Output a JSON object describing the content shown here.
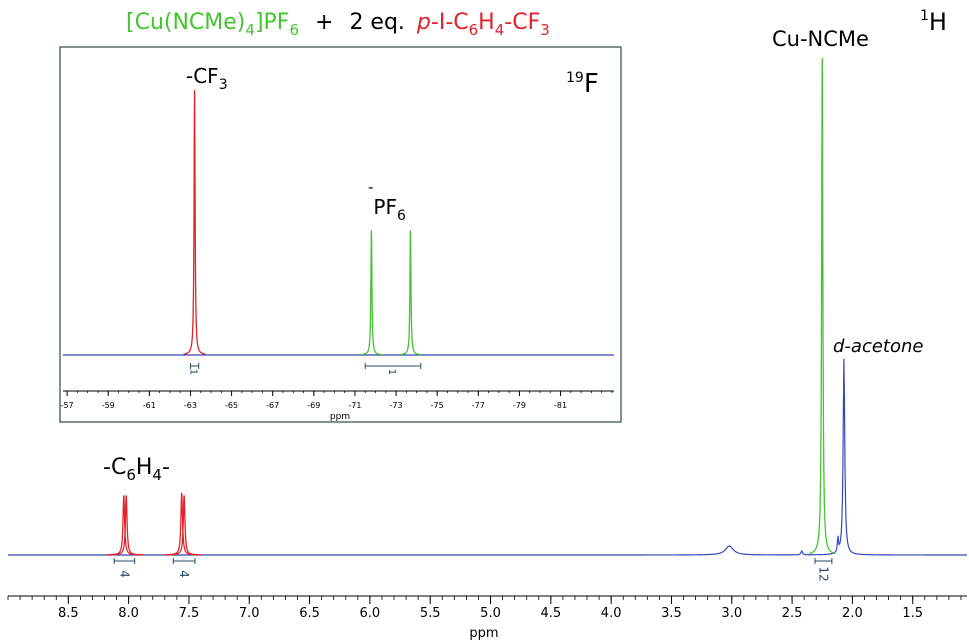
{
  "figure": {
    "reaction": {
      "reagent1": "[Cu(NCMe)",
      "reagent1_sub": "4",
      "reagent1_end": "]PF",
      "reagent1_sub2": "6",
      "plus": "+",
      "equiv": "2 eq.",
      "reagent2_italic": "p",
      "reagent2": "-I-C",
      "reagent2_sub1": "6",
      "reagent2_mid": "H",
      "reagent2_sub2": "4",
      "reagent2_end": "-CF",
      "reagent2_sub3": "3"
    },
    "colors": {
      "green": "#44c530",
      "red": "#e0222a",
      "blue": "#3548b8",
      "integral": "#2a4a6a"
    }
  },
  "chart_data": [
    {
      "id": "1H",
      "type": "line",
      "nucleus_label": {
        "super": "1",
        "base": "H"
      },
      "xlabel": "ppm",
      "xlim": [
        9.0,
        1.05
      ],
      "x_reversed": true,
      "ticks": [
        "8.5",
        "8.0",
        "7.5",
        "7.0",
        "6.5",
        "6.0",
        "5.5",
        "5.0",
        "4.5",
        "4.0",
        "3.5",
        "3.0",
        "2.5",
        "2.0",
        "1.5"
      ],
      "tick_values": [
        8.5,
        8.0,
        7.5,
        7.0,
        6.5,
        6.0,
        5.5,
        5.0,
        4.5,
        4.0,
        3.5,
        3.0,
        2.5,
        2.0,
        1.5
      ],
      "minor_tick_step": 0.1,
      "baseline_color": "blue",
      "peaks": [
        {
          "name": "aryl-a-1",
          "x": 8.04,
          "height": 0.12,
          "width": 0.008,
          "color": "red"
        },
        {
          "name": "aryl-a-2",
          "x": 8.02,
          "height": 0.12,
          "width": 0.008,
          "color": "red"
        },
        {
          "name": "aryl-b-1",
          "x": 7.56,
          "height": 0.125,
          "width": 0.008,
          "color": "red"
        },
        {
          "name": "aryl-b-2",
          "x": 7.54,
          "height": 0.12,
          "width": 0.008,
          "color": "red"
        },
        {
          "name": "hump-3.0",
          "x": 3.02,
          "height": 0.018,
          "width": 0.04,
          "color": "blue"
        },
        {
          "name": "small-2.42",
          "x": 2.42,
          "height": 0.008,
          "width": 0.008,
          "color": "blue"
        },
        {
          "name": "cu-ncme",
          "x": 2.25,
          "height": 1.0,
          "width": 0.006,
          "color": "green"
        },
        {
          "name": "d-acetone",
          "x": 2.07,
          "height": 0.395,
          "width": 0.008,
          "color": "blue"
        },
        {
          "name": "small-2.12",
          "x": 2.12,
          "height": 0.03,
          "width": 0.005,
          "color": "blue"
        }
      ],
      "annotations": [
        {
          "name": "aryl-label",
          "text": "-C",
          "sub1": "6",
          "mid": "H",
          "sub2": "4",
          "end": "-"
        },
        {
          "name": "cu-ncme-label",
          "text": "Cu-NCMe"
        },
        {
          "name": "acetone-label",
          "text": "d-acetone"
        }
      ],
      "integrals": [
        {
          "from": 8.12,
          "to": 7.95,
          "value": "4"
        },
        {
          "from": 7.63,
          "to": 7.45,
          "value": "4"
        },
        {
          "from": 2.31,
          "to": 2.17,
          "value": "12"
        }
      ]
    },
    {
      "id": "19F",
      "type": "line",
      "nucleus_label": {
        "super": "19",
        "base": "F"
      },
      "xlabel": "ppm",
      "xlim": [
        -56.8,
        -83.6
      ],
      "x_reversed": true,
      "ticks": [
        "-57",
        "-59",
        "-61",
        "-63",
        "-65",
        "-67",
        "-69",
        "-71",
        "-73",
        "-75",
        "-77",
        "-79",
        "-81"
      ],
      "tick_values": [
        -57,
        -59,
        -61,
        -63,
        -65,
        -67,
        -69,
        -71,
        -73,
        -75,
        -77,
        -79,
        -81
      ],
      "minor_tick_step": 0.5,
      "baseline_color": "blue",
      "peaks": [
        {
          "name": "cf3",
          "x": -63.2,
          "height": 1.0,
          "width": 0.03,
          "color": "red"
        },
        {
          "name": "pf6-1",
          "x": -71.8,
          "height": 0.47,
          "width": 0.03,
          "color": "green"
        },
        {
          "name": "pf6-2",
          "x": -73.7,
          "height": 0.47,
          "width": 0.03,
          "color": "green"
        }
      ],
      "annotations": [
        {
          "name": "cf3-label",
          "text": "-CF",
          "sub": "3"
        },
        {
          "name": "pf6-label",
          "pre": "-",
          "text": "PF",
          "sub": "6"
        }
      ],
      "integrals": [
        {
          "from": -63.0,
          "to": -63.4,
          "value": "1"
        },
        {
          "from": -71.5,
          "to": -74.2,
          "value": "1"
        }
      ]
    }
  ]
}
